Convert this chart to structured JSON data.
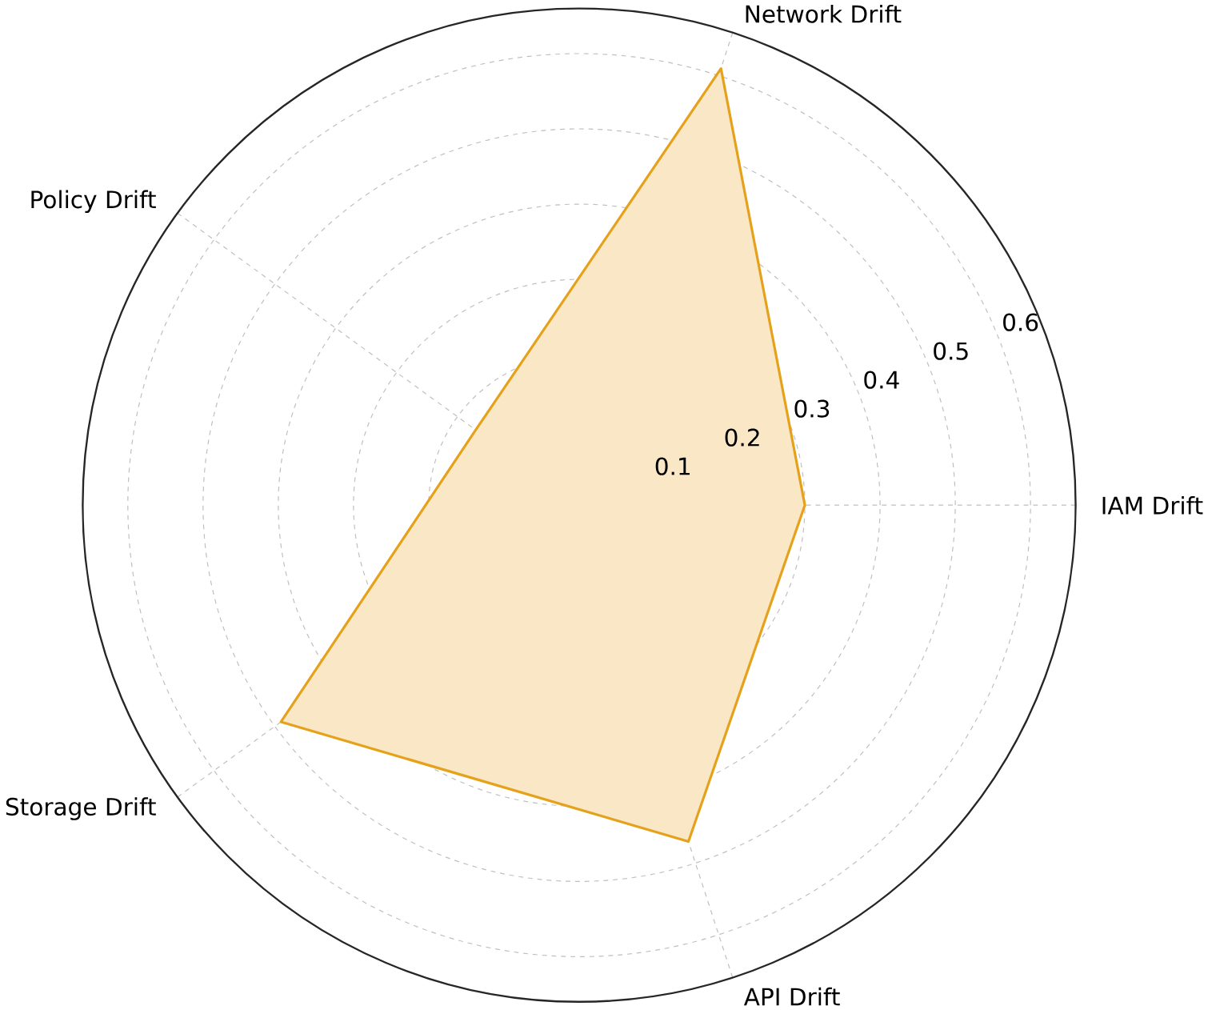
{
  "chart_data": {
    "type": "radar",
    "categories": [
      "Network Drift",
      "IAM Drift",
      "API Drift",
      "Storage Drift",
      "Policy Drift"
    ],
    "series": [
      {
        "color": "#e6a11b",
        "values": [
          0.61,
          0.3,
          0.47,
          0.49,
          0.17
        ]
      }
    ],
    "ylim": [
      0,
      0.66
    ],
    "yticks": [
      0.1,
      0.2,
      0.3,
      0.4,
      0.5,
      0.6
    ],
    "grid": true
  }
}
